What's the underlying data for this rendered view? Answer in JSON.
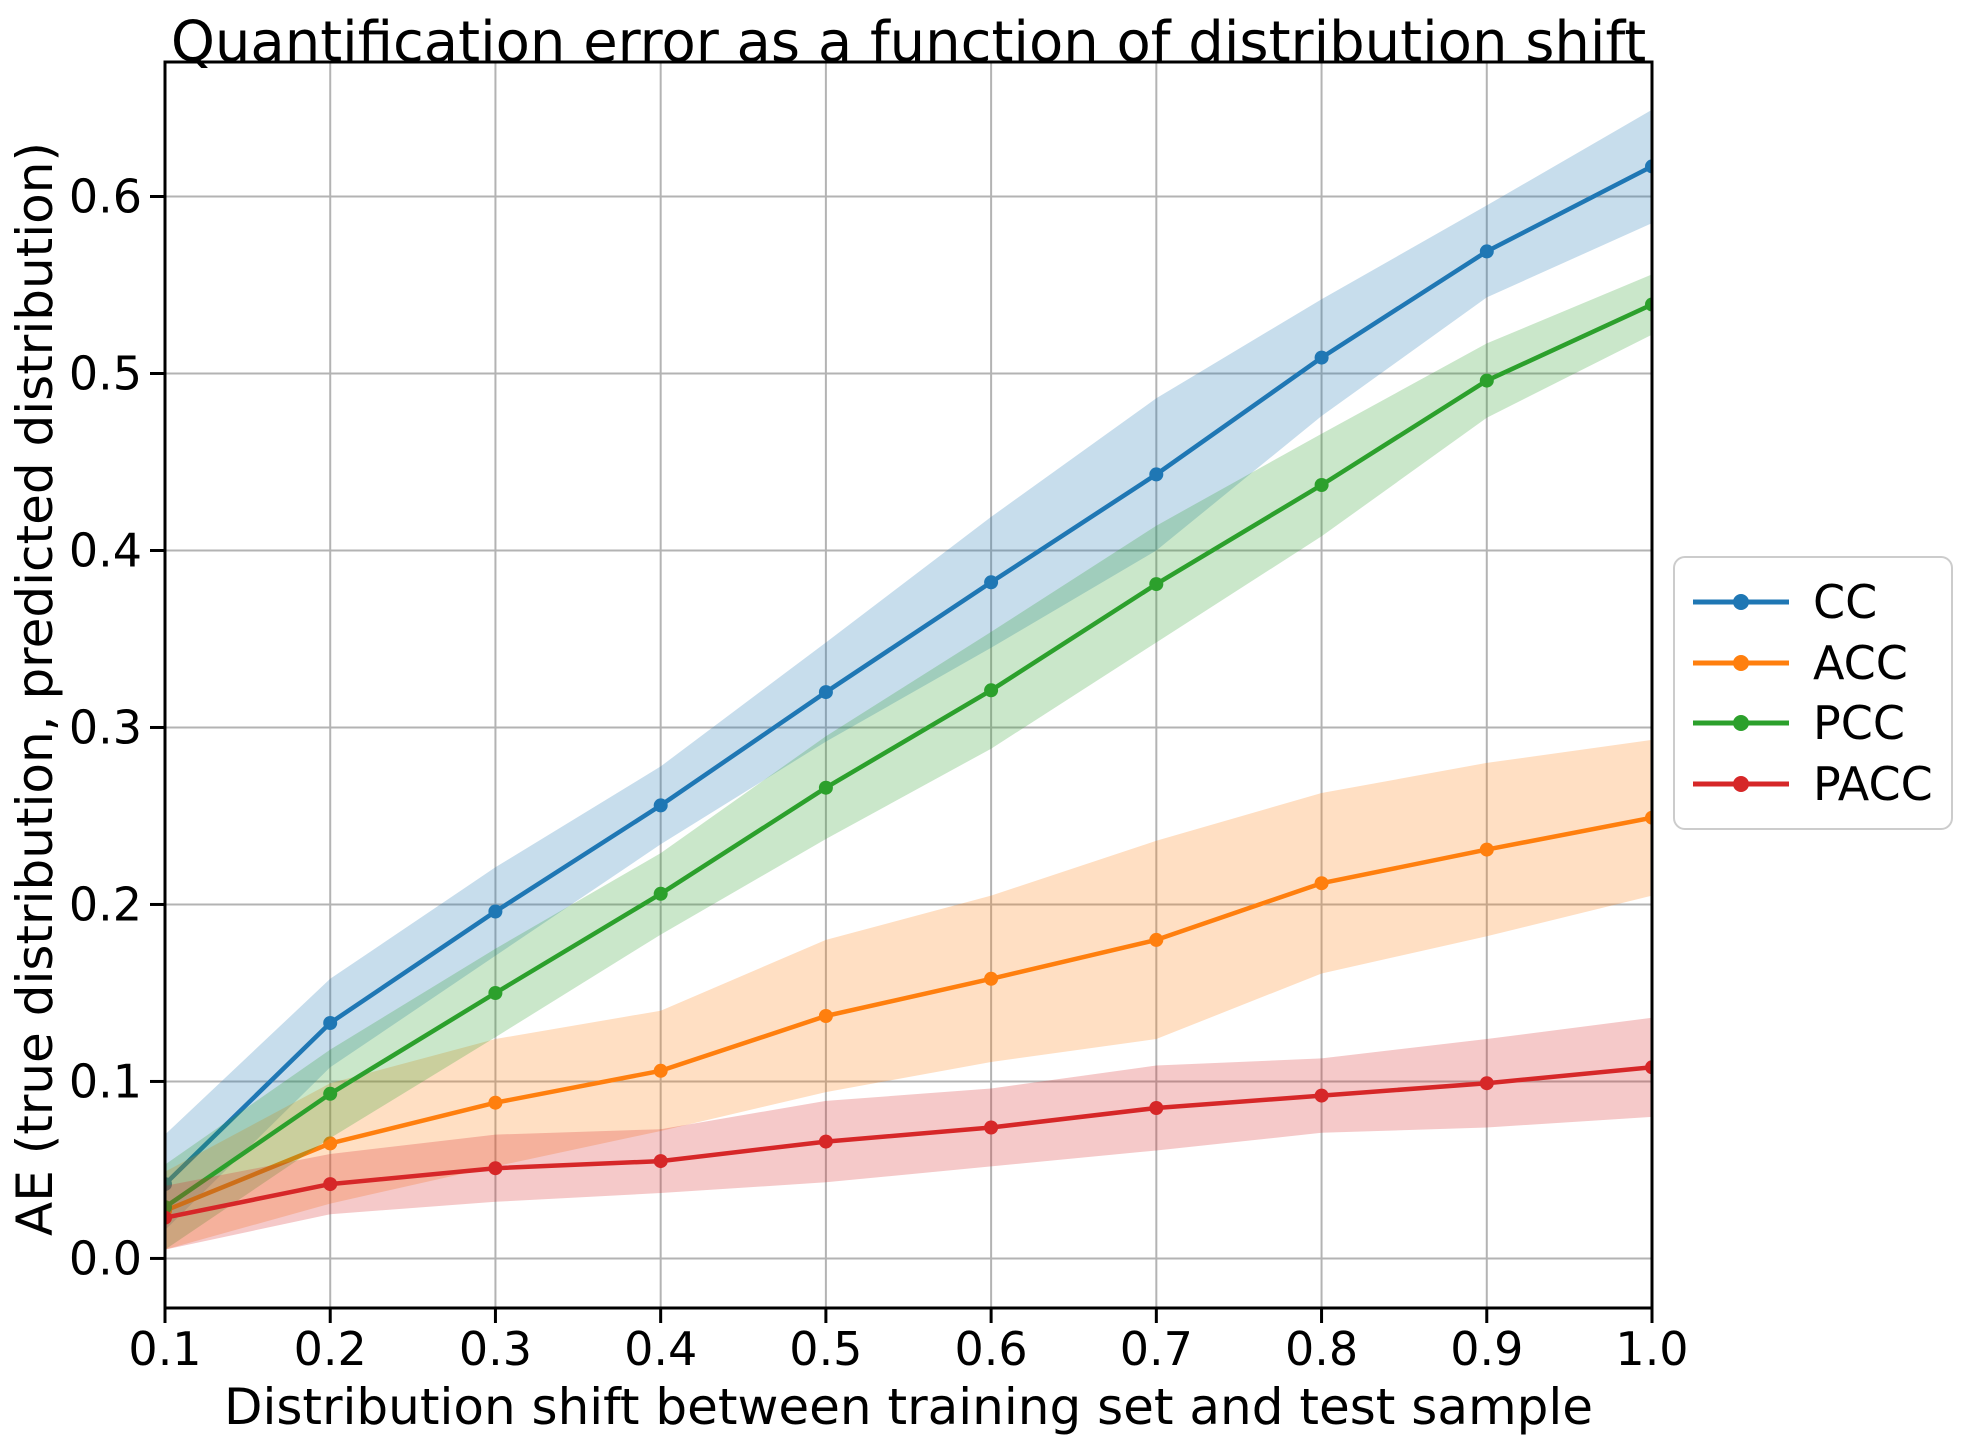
{
  "figure": {
    "title": "Quantification error as a function of distribution shift",
    "xlabel": "Distribution shift between training set and test sample",
    "ylabel": "AE (true distribution, predicted distribution)"
  },
  "legend": {
    "position": "right-outside",
    "items": [
      {
        "label": "CC",
        "color": "#1f77b4"
      },
      {
        "label": "ACC",
        "color": "#ff7f0e"
      },
      {
        "label": "PCC",
        "color": "#2ca02c"
      },
      {
        "label": "PACC",
        "color": "#d62728"
      }
    ]
  },
  "chart_data": {
    "type": "line",
    "title": "Quantification error as a function of distribution shift",
    "xlabel": "Distribution shift between training set and test sample",
    "ylabel": "AE (true distribution, predicted distribution)",
    "x": [
      0.1,
      0.2,
      0.3,
      0.4,
      0.5,
      0.6,
      0.7,
      0.8,
      0.9,
      1.0
    ],
    "x_tick_labels": [
      "0.1",
      "0.2",
      "0.3",
      "0.4",
      "0.5",
      "0.6",
      "0.7",
      "0.8",
      "0.9",
      "1.0"
    ],
    "y_ticks": [
      0.0,
      0.1,
      0.2,
      0.3,
      0.4,
      0.5,
      0.6
    ],
    "y_tick_labels": [
      "0.0",
      "0.1",
      "0.2",
      "0.3",
      "0.4",
      "0.5",
      "0.6"
    ],
    "xlim": [
      0.1,
      1.0
    ],
    "ylim": [
      -0.028,
      0.676
    ],
    "grid": true,
    "grid_color": "#b3b3b3",
    "spine_color": "#000000",
    "band_opacity": 0.25,
    "legend_position": "right-outside",
    "series": [
      {
        "name": "CC",
        "color": "#1f77b4",
        "values": [
          0.042,
          0.133,
          0.196,
          0.256,
          0.32,
          0.382,
          0.443,
          0.509,
          0.569,
          0.617
        ],
        "band_lower": [
          0.016,
          0.108,
          0.171,
          0.234,
          0.292,
          0.345,
          0.4,
          0.476,
          0.543,
          0.585
        ],
        "band_upper": [
          0.07,
          0.158,
          0.221,
          0.278,
          0.348,
          0.419,
          0.486,
          0.542,
          0.595,
          0.649
        ]
      },
      {
        "name": "ACC",
        "color": "#ff7f0e",
        "values": [
          0.027,
          0.065,
          0.088,
          0.106,
          0.137,
          0.158,
          0.18,
          0.212,
          0.231,
          0.249
        ],
        "band_lower": [
          0.005,
          0.031,
          0.052,
          0.072,
          0.094,
          0.111,
          0.124,
          0.161,
          0.182,
          0.205
        ],
        "band_upper": [
          0.049,
          0.099,
          0.124,
          0.14,
          0.18,
          0.205,
          0.236,
          0.263,
          0.28,
          0.293
        ]
      },
      {
        "name": "PCC",
        "color": "#2ca02c",
        "values": [
          0.029,
          0.093,
          0.15,
          0.206,
          0.266,
          0.321,
          0.381,
          0.437,
          0.496,
          0.539
        ],
        "band_lower": [
          0.005,
          0.068,
          0.125,
          0.183,
          0.237,
          0.288,
          0.348,
          0.408,
          0.475,
          0.522
        ],
        "band_upper": [
          0.053,
          0.118,
          0.175,
          0.229,
          0.295,
          0.354,
          0.414,
          0.466,
          0.517,
          0.556
        ]
      },
      {
        "name": "PACC",
        "color": "#d62728",
        "values": [
          0.023,
          0.042,
          0.051,
          0.055,
          0.066,
          0.074,
          0.085,
          0.092,
          0.099,
          0.108
        ],
        "band_lower": [
          0.005,
          0.025,
          0.032,
          0.037,
          0.043,
          0.052,
          0.061,
          0.071,
          0.074,
          0.08
        ],
        "band_upper": [
          0.041,
          0.059,
          0.07,
          0.073,
          0.089,
          0.096,
          0.109,
          0.113,
          0.124,
          0.136
        ]
      }
    ]
  }
}
